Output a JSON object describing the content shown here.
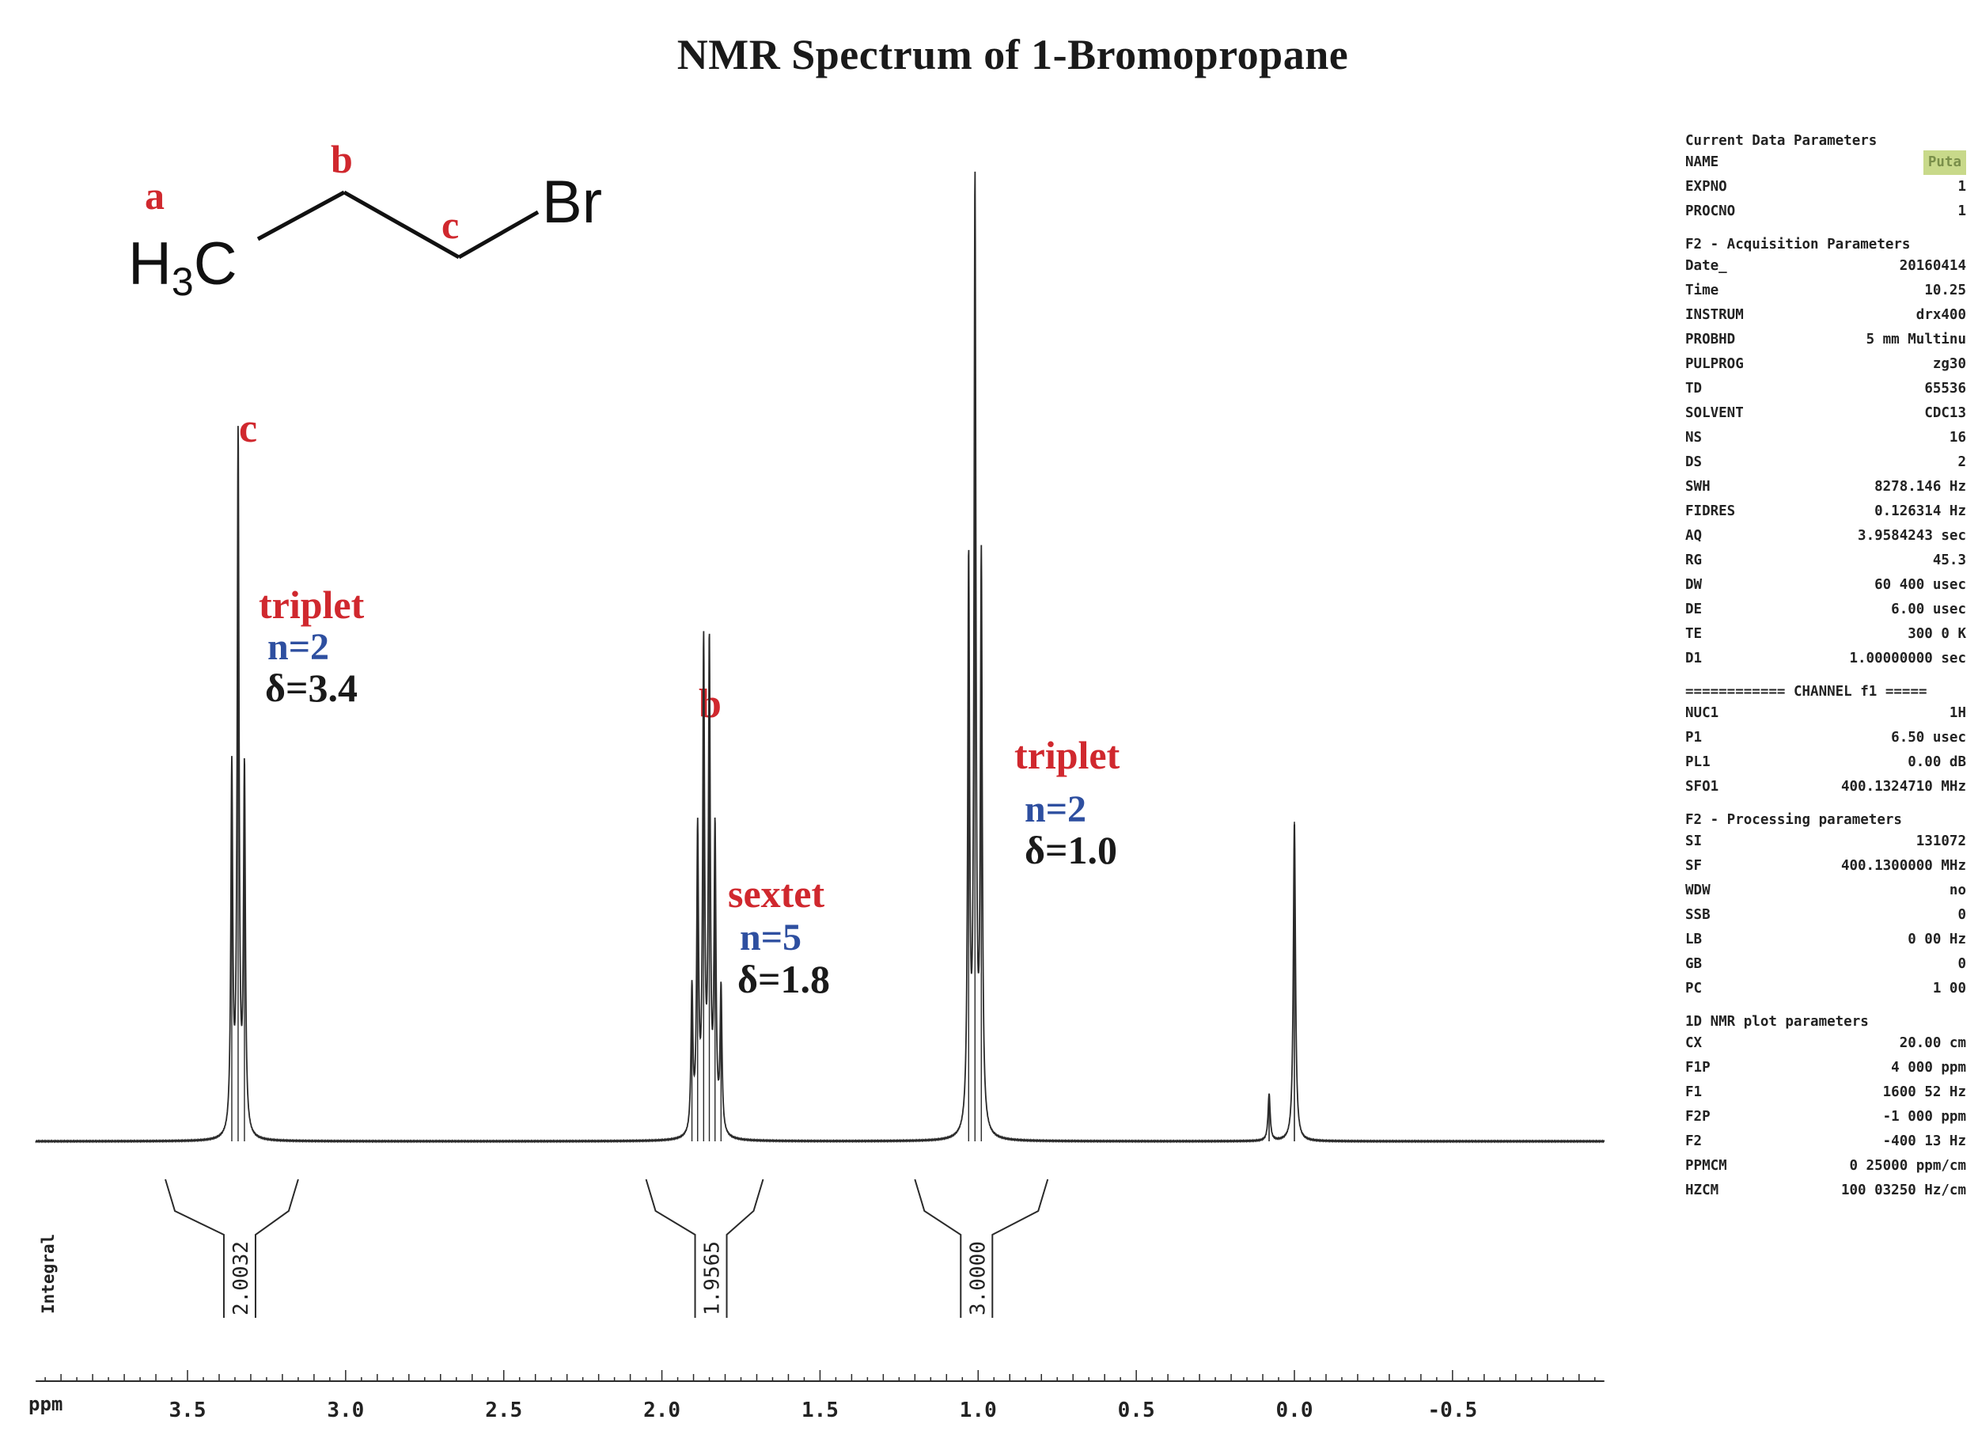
{
  "title": "NMR Spectrum of 1-Bromopropane",
  "molecule": {
    "atom_left": "H",
    "atom_left_sub": "3",
    "atom_left_tail": "C",
    "atom_right": "Br",
    "labels": [
      "a",
      "b",
      "c"
    ]
  },
  "chart_data": {
    "type": "line",
    "xlabel": "ppm",
    "xlim": [
      3.9,
      -1.0
    ],
    "x_reversed": true,
    "x_ticks": [
      3.5,
      3.0,
      2.5,
      2.0,
      1.5,
      1.0,
      0.5,
      0.0,
      -0.5
    ],
    "x_tick_labels": [
      "3.5",
      "3.0",
      "2.5",
      "2.0",
      "1.5",
      "1.0",
      "0.5",
      "0.0",
      "-0.5"
    ],
    "integral_axis_label": "Integral",
    "peaks": [
      {
        "id": "c",
        "center_ppm": 3.34,
        "multiplicity": "triplet",
        "n_label": "n=2",
        "shift_label": "δ=3.4",
        "integral": "2.0032",
        "lines": [
          3.36,
          3.34,
          3.32
        ],
        "heights": [
          0.52,
          1.0,
          0.52
        ]
      },
      {
        "id": "b",
        "center_ppm": 1.85,
        "multiplicity": "sextet",
        "n_label": "n=5",
        "shift_label": "δ=1.8",
        "integral": "1.9565",
        "lines": [
          1.905,
          1.887,
          1.868,
          1.85,
          1.832,
          1.813
        ],
        "heights": [
          0.3,
          0.62,
          1.0,
          1.0,
          0.62,
          0.3
        ]
      },
      {
        "id": "",
        "center_ppm": 1.01,
        "multiplicity": "triplet",
        "n_label": "n=2",
        "shift_label": "δ=1.0",
        "integral": "3.0000",
        "lines": [
          1.03,
          1.01,
          0.99
        ],
        "heights": [
          0.6,
          1.0,
          0.6
        ]
      }
    ],
    "reference_peaks": [
      {
        "ppm": 0.0,
        "height": 0.34
      },
      {
        "ppm": 0.08,
        "height": 0.05
      }
    ]
  },
  "parameters": {
    "current": {
      "heading": "Current Data Parameters",
      "rows": [
        [
          "NAME",
          "Puta"
        ],
        [
          "EXPNO",
          "1"
        ],
        [
          "PROCNO",
          "1"
        ]
      ]
    },
    "acquisition": {
      "heading": "F2 - Acquisition Parameters",
      "rows": [
        [
          "Date_",
          "20160414"
        ],
        [
          "Time",
          "10.25"
        ],
        [
          "INSTRUM",
          "drx400"
        ],
        [
          "PROBHD",
          "5 mm Multinu"
        ],
        [
          "PULPROG",
          "zg30"
        ],
        [
          "TD",
          "65536"
        ],
        [
          "SOLVENT",
          "CDC13"
        ],
        [
          "NS",
          "16"
        ],
        [
          "DS",
          "2"
        ],
        [
          "SWH",
          "8278.146 Hz"
        ],
        [
          "FIDRES",
          "0.126314 Hz"
        ],
        [
          "AQ",
          "3.9584243 sec"
        ],
        [
          "RG",
          "45.3"
        ],
        [
          "DW",
          "60 400 usec"
        ],
        [
          "DE",
          "6.00 usec"
        ],
        [
          "TE",
          "300 0 K"
        ],
        [
          "D1",
          "1.00000000 sec"
        ]
      ]
    },
    "channel": {
      "heading": "============ CHANNEL f1 =====",
      "rows": [
        [
          "NUC1",
          "1H"
        ],
        [
          "P1",
          "6.50 usec"
        ],
        [
          "PL1",
          "0.00 dB"
        ],
        [
          "SFO1",
          "400.1324710 MHz"
        ]
      ]
    },
    "processing": {
      "heading": "F2 - Processing parameters",
      "rows": [
        [
          "SI",
          "131072"
        ],
        [
          "SF",
          "400.1300000 MHz"
        ],
        [
          "WDW",
          "no"
        ],
        [
          "SSB",
          "0"
        ],
        [
          "LB",
          "0 00 Hz"
        ],
        [
          "GB",
          "0"
        ],
        [
          "PC",
          "1 00"
        ]
      ]
    },
    "plot": {
      "heading": "1D NMR plot parameters",
      "rows": [
        [
          "CX",
          "20.00 cm"
        ],
        [
          "F1P",
          "4 000 ppm"
        ],
        [
          "F1",
          "1600 52 Hz"
        ],
        [
          "F2P",
          "-1 000 ppm"
        ],
        [
          "F2",
          "-400 13 Hz"
        ],
        [
          "PPMCM",
          "0 25000 ppm/cm"
        ],
        [
          "HZCM",
          "100 03250 Hz/cm"
        ]
      ]
    }
  }
}
